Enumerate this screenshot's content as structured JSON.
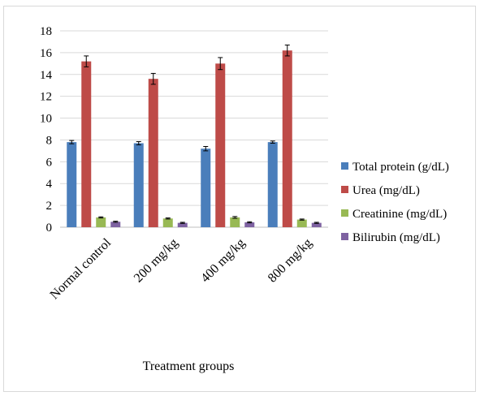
{
  "chart_data": {
    "type": "bar",
    "xlabel": "Treatment groups",
    "ylabel": "",
    "ylim": [
      0,
      18
    ],
    "yticks": [
      0,
      2,
      4,
      6,
      8,
      10,
      12,
      14,
      16,
      18
    ],
    "grid": true,
    "legend_position": "right",
    "categories": [
      "Normal control",
      "200 mg/kg",
      "400 mg/kg",
      "800 mg/kg"
    ],
    "series": [
      {
        "name": "Total protein (g/dL)",
        "color": "#4a7ebb",
        "values": [
          7.8,
          7.7,
          7.2,
          7.8
        ],
        "errors": [
          0.15,
          0.15,
          0.2,
          0.1
        ]
      },
      {
        "name": "Urea (mg/dL)",
        "color": "#be4b48",
        "values": [
          15.2,
          13.6,
          15.0,
          16.2
        ],
        "errors": [
          0.5,
          0.5,
          0.55,
          0.5
        ]
      },
      {
        "name": "Creatinine (mg/dL)",
        "color": "#98b954",
        "values": [
          0.9,
          0.8,
          0.9,
          0.7
        ],
        "errors": [
          0.05,
          0.05,
          0.08,
          0.05
        ]
      },
      {
        "name": "Bilirubin (mg/dL)",
        "color": "#7e62a1",
        "values": [
          0.5,
          0.4,
          0.45,
          0.4
        ],
        "errors": [
          0.05,
          0.05,
          0.05,
          0.05
        ]
      }
    ]
  }
}
